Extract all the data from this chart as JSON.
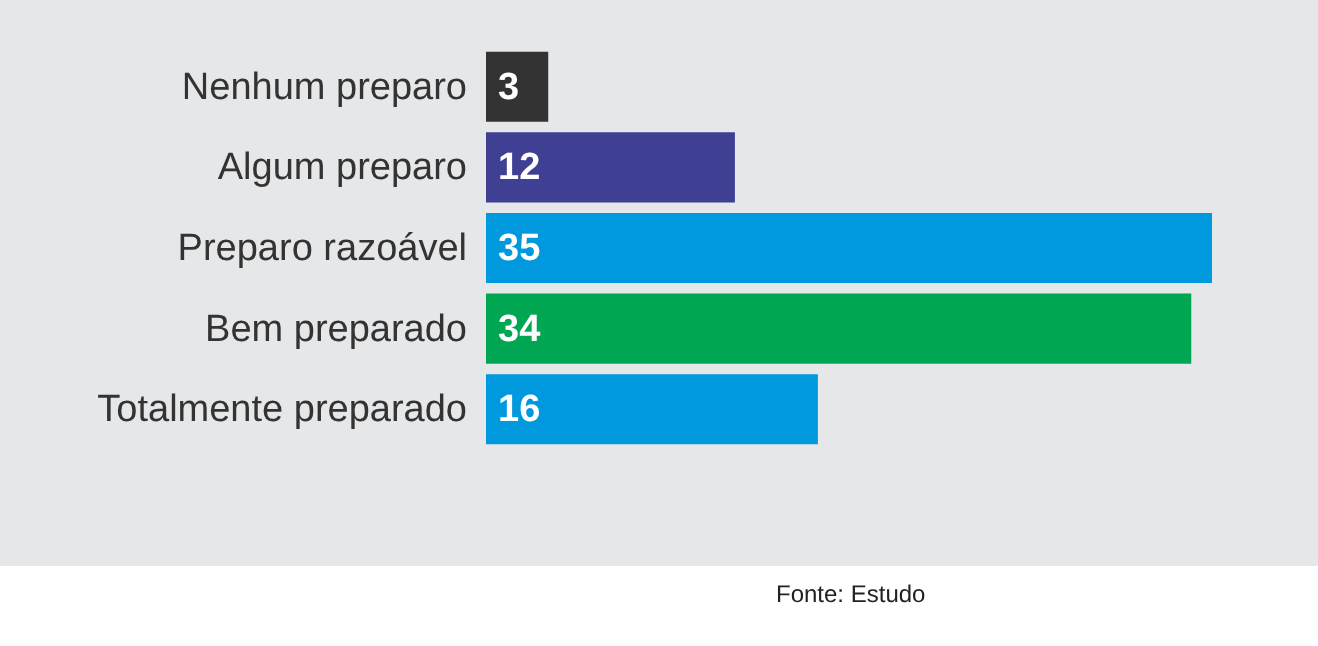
{
  "chart_data": {
    "type": "bar",
    "orientation": "horizontal",
    "categories": [
      "Nenhum preparo",
      "Algum preparo",
      "Preparo razoável",
      "Bem preparado",
      "Totalmente preparado"
    ],
    "values": [
      3,
      12,
      35,
      34,
      16
    ],
    "colors": [
      "#333333",
      "#3f3f94",
      "#0099dd",
      "#00a651",
      "#0099dd"
    ],
    "data_labels": true,
    "tick_labels": "y",
    "annotations": [
      "Fonte: Estudo"
    ]
  }
}
